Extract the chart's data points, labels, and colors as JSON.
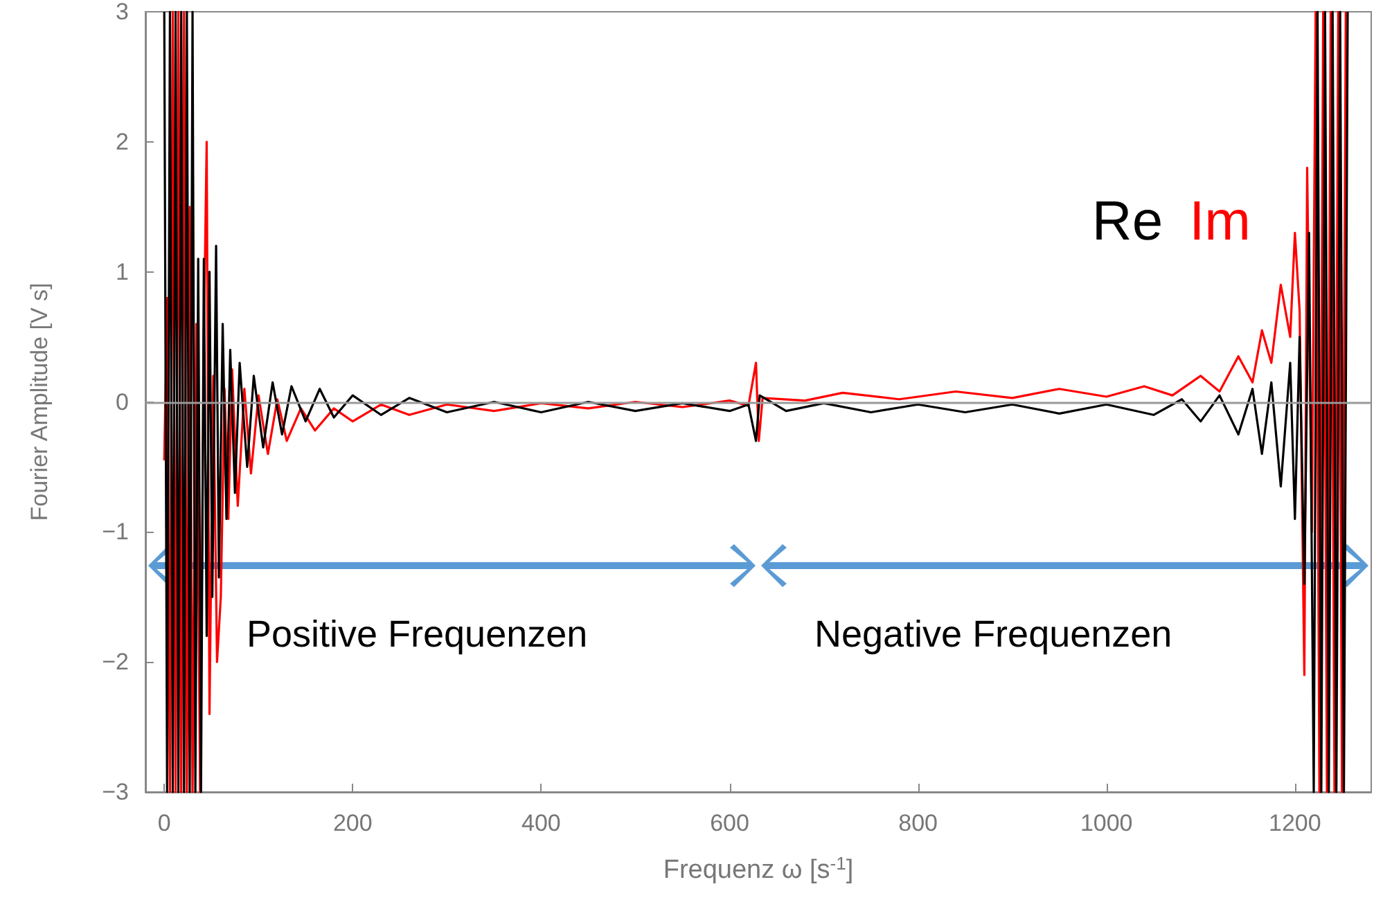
{
  "chart_data": {
    "type": "line",
    "xlabel": "Frequenz ω [s$^{-1}$]",
    "ylabel": "Fourier Amplitude [V s]",
    "xlim": [
      -20,
      1281
    ],
    "xticks": [
      0,
      200,
      400,
      600,
      800,
      1000,
      1200
    ],
    "ylim": [
      -3,
      3
    ],
    "yticks": [
      -3,
      -2,
      -1,
      0,
      1,
      2,
      3
    ],
    "grid": false,
    "legend": "top right",
    "marker": "none",
    "line_style": "solid",
    "ref_lines": [
      {
        "axis": "y",
        "value": 0,
        "color": "#999999"
      }
    ],
    "annotations": [
      "Positive Frequenzen",
      "Negative Frequenzen"
    ],
    "series": [
      {
        "name": "Re",
        "color": "#000000",
        "x": [
          0,
          3,
          6,
          9,
          12,
          15,
          18,
          21,
          24,
          27,
          30,
          33,
          36,
          39,
          42,
          45,
          48,
          51,
          55,
          58,
          62,
          66,
          70,
          75,
          80,
          88,
          95,
          105,
          115,
          125,
          135,
          150,
          165,
          180,
          200,
          230,
          260,
          300,
          350,
          400,
          450,
          500,
          550,
          600,
          620,
          628,
          632,
          660,
          700,
          750,
          800,
          850,
          900,
          950,
          1000,
          1050,
          1080,
          1100,
          1120,
          1140,
          1155,
          1165,
          1175,
          1185,
          1195,
          1200,
          1205,
          1210,
          1215,
          1220,
          1224,
          1228,
          1232,
          1236,
          1240,
          1244,
          1248,
          1252,
          1256
        ],
        "values": [
          3,
          -3,
          3,
          -3,
          3,
          -3,
          3,
          -3,
          3,
          -3,
          3,
          -3,
          1.1,
          -3,
          1.1,
          -1.8,
          1.0,
          -1.5,
          1.2,
          -1.35,
          0.6,
          -0.9,
          0.4,
          -0.7,
          0.3,
          -0.5,
          0.2,
          -0.35,
          0.15,
          -0.25,
          0.12,
          -0.15,
          0.1,
          -0.12,
          0.05,
          -0.1,
          0.03,
          -0.08,
          0,
          -0.08,
          0,
          -0.07,
          -0.01,
          -0.07,
          -0.02,
          -0.3,
          0.05,
          -0.07,
          -0.01,
          -0.08,
          -0.02,
          -0.08,
          -0.02,
          -0.09,
          -0.02,
          -0.1,
          0.02,
          -0.15,
          0.05,
          -0.25,
          0.1,
          -0.4,
          0.15,
          -0.65,
          0.3,
          -0.9,
          0.5,
          -1.4,
          1.3,
          -3,
          3,
          -3,
          3,
          -3,
          3,
          -3,
          3,
          -3,
          3
        ]
      },
      {
        "name": "Im",
        "color": "#ff0000",
        "x": [
          0,
          3,
          6,
          9,
          12,
          15,
          18,
          21,
          24,
          27,
          30,
          34,
          38,
          42,
          45,
          48,
          52,
          56,
          60,
          64,
          68,
          72,
          78,
          85,
          92,
          100,
          110,
          120,
          130,
          145,
          160,
          180,
          200,
          230,
          260,
          300,
          350,
          400,
          450,
          500,
          550,
          600,
          620,
          628,
          631,
          635,
          680,
          720,
          780,
          840,
          900,
          950,
          1000,
          1040,
          1070,
          1100,
          1120,
          1140,
          1155,
          1165,
          1175,
          1185,
          1195,
          1200,
          1205,
          1210,
          1213,
          1218,
          1222,
          1226,
          1230,
          1234,
          1238,
          1242,
          1246,
          1250,
          1254
        ],
        "values": [
          -0.45,
          0.8,
          -3,
          3,
          -3,
          3,
          -3,
          3,
          -3,
          1.5,
          -3,
          0.6,
          -3,
          0.5,
          2.0,
          -2.4,
          0.2,
          -2.0,
          -1.5,
          0.1,
          -0.9,
          0.25,
          -0.8,
          0.1,
          -0.55,
          0.05,
          -0.4,
          0.02,
          -0.3,
          -0.05,
          -0.22,
          -0.05,
          -0.15,
          -0.02,
          -0.1,
          -0.02,
          -0.07,
          -0.01,
          -0.05,
          0,
          -0.04,
          0.01,
          -0.03,
          0.3,
          -0.3,
          0.03,
          0.01,
          0.07,
          0.02,
          0.08,
          0.03,
          0.1,
          0.04,
          0.12,
          0.05,
          0.2,
          0.08,
          0.35,
          0.15,
          0.55,
          0.3,
          0.9,
          0.5,
          1.3,
          0.7,
          -2.1,
          1.8,
          -1.0,
          3,
          -3,
          3,
          -3,
          3,
          -3,
          3,
          -3,
          3
        ]
      }
    ]
  }
}
